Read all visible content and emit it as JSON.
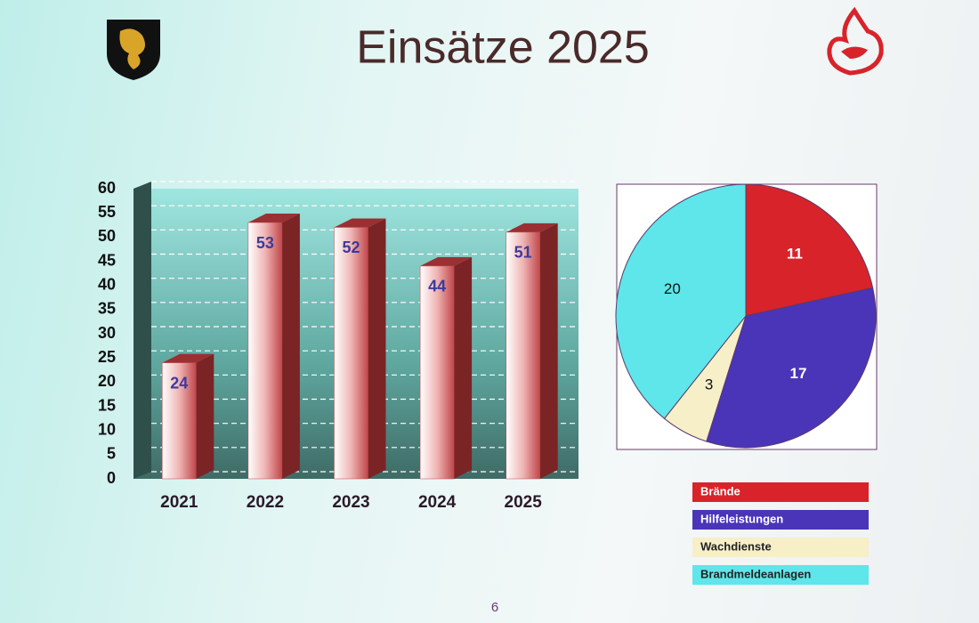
{
  "title": "Einsätze 2025",
  "page_number": "6",
  "chart_data": [
    {
      "type": "bar",
      "categories": [
        "2021",
        "2022",
        "2023",
        "2024",
        "2025"
      ],
      "values": [
        24,
        53,
        52,
        44,
        51
      ],
      "color": "#c0474a",
      "label_color": "#3b3a9e",
      "ylim": [
        0,
        60
      ],
      "yticks": [
        0,
        5,
        10,
        15,
        20,
        25,
        30,
        35,
        40,
        45,
        50,
        55,
        60
      ],
      "grid": true
    },
    {
      "type": "pie",
      "categories": [
        "Brände",
        "Hilfeleistungen",
        "Wachdienste",
        "Brandmeldeanlagen"
      ],
      "values": [
        11,
        17,
        3,
        20
      ],
      "colors": [
        "#d8232a",
        "#4a35b8",
        "#f6efc8",
        "#5ee6ea"
      ],
      "legend": "below"
    }
  ]
}
